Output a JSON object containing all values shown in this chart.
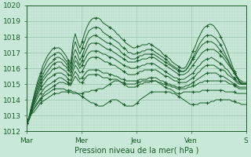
{
  "xlabel": "Pression niveau de la mer( hPa )",
  "xlim": [
    0,
    96
  ],
  "ylim": [
    1012,
    1020
  ],
  "yticks": [
    1012,
    1013,
    1014,
    1015,
    1016,
    1017,
    1018,
    1019,
    1020
  ],
  "xtick_positions": [
    0,
    24,
    48,
    72,
    96
  ],
  "xtick_labels": [
    "Mar",
    "Mer",
    "Jeu",
    "Ven",
    "S"
  ],
  "bg_color": "#c8e8d8",
  "grid_color_major": "#a0c8b0",
  "grid_color_minor": "#b8d8c8",
  "line_color": "#1a5c2a",
  "series": [
    [
      1012.6,
      1012.8,
      1013.1,
      1013.2,
      1013.4,
      1013.6,
      1013.8,
      1013.9,
      1014.0,
      1014.1,
      1014.2,
      1014.3,
      1014.4,
      1014.4,
      1014.4,
      1014.5,
      1014.5,
      1014.5,
      1014.5,
      1014.5,
      1014.4,
      1014.4,
      1014.4,
      1014.3,
      1014.2,
      1014.1,
      1014.0,
      1013.9,
      1013.8,
      1013.8,
      1013.7,
      1013.6,
      1013.6,
      1013.6,
      1013.7,
      1013.8,
      1013.9,
      1014.0,
      1014.0,
      1014.0,
      1013.9,
      1013.8,
      1013.7,
      1013.6,
      1013.6,
      1013.6,
      1013.6,
      1013.7,
      1013.8,
      1014.0,
      1014.1,
      1014.2,
      1014.3,
      1014.4,
      1014.5,
      1014.5,
      1014.5,
      1014.5,
      1014.5,
      1014.5,
      1014.5,
      1014.5,
      1014.5,
      1014.4,
      1014.4,
      1014.3,
      1014.2,
      1014.1,
      1014.0,
      1013.9,
      1013.8,
      1013.7,
      1013.7,
      1013.7,
      1013.7,
      1013.8,
      1013.8,
      1013.8,
      1013.8,
      1013.8,
      1013.9,
      1013.9,
      1014.0,
      1014.0,
      1014.0,
      1014.0,
      1014.0,
      1014.0,
      1014.0,
      1013.9,
      1013.9,
      1013.8,
      1013.8,
      1013.7,
      1013.7,
      1013.7
    ],
    [
      1012.6,
      1012.8,
      1013.2,
      1013.4,
      1013.6,
      1013.8,
      1014.0,
      1014.2,
      1014.3,
      1014.4,
      1014.5,
      1014.6,
      1014.7,
      1014.7,
      1014.7,
      1014.7,
      1014.7,
      1014.6,
      1014.6,
      1014.6,
      1014.5,
      1014.5,
      1014.4,
      1014.4,
      1014.4,
      1014.5,
      1014.5,
      1014.5,
      1014.6,
      1014.6,
      1014.6,
      1014.7,
      1014.7,
      1014.7,
      1014.8,
      1014.9,
      1015.0,
      1015.1,
      1015.2,
      1015.2,
      1015.2,
      1015.1,
      1015.0,
      1014.9,
      1014.8,
      1014.8,
      1014.8,
      1014.8,
      1014.9,
      1015.0,
      1015.0,
      1015.1,
      1015.1,
      1015.1,
      1015.2,
      1015.2,
      1015.2,
      1015.1,
      1015.0,
      1014.9,
      1014.8,
      1014.7,
      1014.7,
      1014.6,
      1014.5,
      1014.4,
      1014.4,
      1014.4,
      1014.5,
      1014.5,
      1014.5,
      1014.5,
      1014.5,
      1014.5,
      1014.5,
      1014.5,
      1014.6,
      1014.6,
      1014.6,
      1014.6,
      1014.6,
      1014.6,
      1014.6,
      1014.6,
      1014.6,
      1014.6,
      1014.5,
      1014.5,
      1014.5,
      1014.5,
      1014.5,
      1014.4,
      1014.4,
      1014.4,
      1014.4,
      1014.4
    ],
    [
      1012.5,
      1012.7,
      1013.1,
      1013.4,
      1013.7,
      1013.9,
      1014.1,
      1014.3,
      1014.5,
      1014.6,
      1014.7,
      1014.8,
      1014.9,
      1015.0,
      1015.1,
      1015.1,
      1015.1,
      1015.0,
      1015.0,
      1014.9,
      1015.2,
      1015.5,
      1015.3,
      1015.1,
      1015.1,
      1015.3,
      1015.5,
      1015.6,
      1015.6,
      1015.6,
      1015.6,
      1015.6,
      1015.5,
      1015.4,
      1015.4,
      1015.4,
      1015.3,
      1015.3,
      1015.3,
      1015.3,
      1015.2,
      1015.1,
      1015.1,
      1015.0,
      1015.0,
      1015.0,
      1015.0,
      1015.0,
      1015.1,
      1015.1,
      1015.2,
      1015.2,
      1015.2,
      1015.2,
      1015.2,
      1015.2,
      1015.2,
      1015.1,
      1015.1,
      1015.0,
      1015.0,
      1014.9,
      1014.9,
      1014.8,
      1014.8,
      1014.7,
      1014.7,
      1014.7,
      1014.7,
      1014.7,
      1014.8,
      1014.8,
      1014.9,
      1014.9,
      1015.0,
      1015.1,
      1015.1,
      1015.2,
      1015.2,
      1015.2,
      1015.2,
      1015.2,
      1015.2,
      1015.2,
      1015.2,
      1015.2,
      1015.2,
      1015.1,
      1015.0,
      1015.0,
      1014.9,
      1014.8,
      1014.7,
      1014.7,
      1014.7,
      1014.7
    ],
    [
      1012.5,
      1012.8,
      1013.2,
      1013.6,
      1013.9,
      1014.2,
      1014.4,
      1014.6,
      1014.8,
      1014.9,
      1015.0,
      1015.1,
      1015.2,
      1015.3,
      1015.4,
      1015.4,
      1015.3,
      1015.2,
      1015.1,
      1015.0,
      1015.5,
      1015.8,
      1015.6,
      1015.3,
      1015.4,
      1015.6,
      1015.8,
      1015.9,
      1015.9,
      1015.9,
      1015.9,
      1015.9,
      1015.8,
      1015.7,
      1015.7,
      1015.7,
      1015.6,
      1015.6,
      1015.5,
      1015.5,
      1015.4,
      1015.3,
      1015.3,
      1015.2,
      1015.2,
      1015.2,
      1015.2,
      1015.2,
      1015.2,
      1015.3,
      1015.3,
      1015.3,
      1015.3,
      1015.4,
      1015.4,
      1015.4,
      1015.4,
      1015.3,
      1015.2,
      1015.2,
      1015.1,
      1015.0,
      1015.0,
      1014.9,
      1014.9,
      1014.8,
      1014.8,
      1014.8,
      1014.8,
      1014.9,
      1014.9,
      1015.0,
      1015.1,
      1015.2,
      1015.3,
      1015.4,
      1015.5,
      1015.6,
      1015.7,
      1015.7,
      1015.7,
      1015.7,
      1015.7,
      1015.6,
      1015.5,
      1015.5,
      1015.4,
      1015.3,
      1015.2,
      1015.1,
      1015.0,
      1014.9,
      1014.8,
      1014.8,
      1014.8,
      1014.8
    ],
    [
      1012.5,
      1012.8,
      1013.3,
      1013.7,
      1014.1,
      1014.4,
      1014.7,
      1014.9,
      1015.1,
      1015.3,
      1015.4,
      1015.5,
      1015.6,
      1015.7,
      1015.7,
      1015.7,
      1015.6,
      1015.5,
      1015.3,
      1015.2,
      1015.8,
      1016.2,
      1016.0,
      1015.7,
      1015.8,
      1016.1,
      1016.4,
      1016.6,
      1016.7,
      1016.7,
      1016.7,
      1016.7,
      1016.6,
      1016.5,
      1016.4,
      1016.4,
      1016.3,
      1016.2,
      1016.2,
      1016.1,
      1016.0,
      1015.9,
      1015.8,
      1015.7,
      1015.6,
      1015.6,
      1015.6,
      1015.6,
      1015.7,
      1015.8,
      1015.8,
      1015.9,
      1015.9,
      1015.9,
      1015.9,
      1015.9,
      1015.9,
      1015.8,
      1015.7,
      1015.6,
      1015.5,
      1015.5,
      1015.4,
      1015.3,
      1015.2,
      1015.2,
      1015.1,
      1015.1,
      1015.1,
      1015.1,
      1015.2,
      1015.3,
      1015.4,
      1015.5,
      1015.7,
      1015.8,
      1016.0,
      1016.1,
      1016.2,
      1016.2,
      1016.2,
      1016.2,
      1016.1,
      1016.0,
      1015.9,
      1015.9,
      1015.8,
      1015.6,
      1015.5,
      1015.4,
      1015.3,
      1015.1,
      1015.0,
      1015.0,
      1015.0,
      1015.0
    ],
    [
      1012.5,
      1012.8,
      1013.3,
      1013.8,
      1014.2,
      1014.6,
      1014.9,
      1015.2,
      1015.4,
      1015.6,
      1015.7,
      1015.9,
      1016.0,
      1016.0,
      1016.1,
      1016.0,
      1015.9,
      1015.8,
      1015.6,
      1015.5,
      1016.1,
      1016.5,
      1016.3,
      1016.0,
      1016.2,
      1016.5,
      1016.8,
      1017.0,
      1017.1,
      1017.1,
      1017.1,
      1017.1,
      1017.0,
      1016.9,
      1016.9,
      1016.8,
      1016.7,
      1016.7,
      1016.6,
      1016.5,
      1016.4,
      1016.3,
      1016.2,
      1016.1,
      1016.1,
      1016.0,
      1016.0,
      1016.0,
      1016.1,
      1016.1,
      1016.2,
      1016.2,
      1016.3,
      1016.3,
      1016.3,
      1016.3,
      1016.2,
      1016.1,
      1016.0,
      1015.9,
      1015.8,
      1015.7,
      1015.6,
      1015.5,
      1015.4,
      1015.4,
      1015.3,
      1015.3,
      1015.3,
      1015.4,
      1015.5,
      1015.6,
      1015.7,
      1015.9,
      1016.1,
      1016.2,
      1016.4,
      1016.5,
      1016.6,
      1016.6,
      1016.7,
      1016.6,
      1016.5,
      1016.4,
      1016.3,
      1016.2,
      1016.0,
      1015.9,
      1015.7,
      1015.5,
      1015.4,
      1015.2,
      1015.1,
      1015.0,
      1015.0,
      1015.0
    ],
    [
      1012.5,
      1012.8,
      1013.4,
      1013.9,
      1014.3,
      1014.7,
      1015.1,
      1015.4,
      1015.6,
      1015.8,
      1016.0,
      1016.2,
      1016.3,
      1016.4,
      1016.4,
      1016.4,
      1016.2,
      1016.1,
      1015.9,
      1015.7,
      1016.4,
      1016.8,
      1016.5,
      1016.2,
      1016.5,
      1016.9,
      1017.2,
      1017.5,
      1017.6,
      1017.6,
      1017.6,
      1017.6,
      1017.5,
      1017.4,
      1017.3,
      1017.2,
      1017.2,
      1017.1,
      1017.0,
      1016.9,
      1016.8,
      1016.7,
      1016.6,
      1016.5,
      1016.4,
      1016.4,
      1016.4,
      1016.4,
      1016.5,
      1016.5,
      1016.6,
      1016.6,
      1016.6,
      1016.7,
      1016.7,
      1016.7,
      1016.6,
      1016.5,
      1016.4,
      1016.3,
      1016.2,
      1016.1,
      1016.0,
      1015.9,
      1015.8,
      1015.7,
      1015.6,
      1015.6,
      1015.6,
      1015.7,
      1015.8,
      1016.0,
      1016.2,
      1016.4,
      1016.6,
      1016.8,
      1017.0,
      1017.1,
      1017.2,
      1017.2,
      1017.2,
      1017.2,
      1017.1,
      1017.0,
      1016.8,
      1016.7,
      1016.5,
      1016.3,
      1016.1,
      1015.9,
      1015.7,
      1015.5,
      1015.3,
      1015.2,
      1015.1,
      1015.1
    ],
    [
      1012.5,
      1012.9,
      1013.5,
      1014.0,
      1014.5,
      1014.9,
      1015.3,
      1015.6,
      1015.9,
      1016.1,
      1016.3,
      1016.4,
      1016.6,
      1016.7,
      1016.7,
      1016.6,
      1016.5,
      1016.3,
      1016.1,
      1015.9,
      1016.8,
      1017.2,
      1016.9,
      1016.5,
      1016.8,
      1017.2,
      1017.6,
      1017.9,
      1018.0,
      1018.1,
      1018.1,
      1018.0,
      1017.9,
      1017.8,
      1017.7,
      1017.6,
      1017.6,
      1017.5,
      1017.4,
      1017.3,
      1017.2,
      1017.0,
      1016.9,
      1016.8,
      1016.7,
      1016.6,
      1016.6,
      1016.6,
      1016.7,
      1016.8,
      1016.8,
      1016.9,
      1016.9,
      1016.9,
      1016.9,
      1016.9,
      1016.8,
      1016.7,
      1016.6,
      1016.5,
      1016.4,
      1016.3,
      1016.2,
      1016.1,
      1016.0,
      1015.9,
      1015.8,
      1015.8,
      1015.8,
      1015.9,
      1016.1,
      1016.3,
      1016.6,
      1016.8,
      1017.1,
      1017.3,
      1017.5,
      1017.6,
      1017.7,
      1017.7,
      1017.7,
      1017.6,
      1017.5,
      1017.3,
      1017.1,
      1016.9,
      1016.7,
      1016.5,
      1016.2,
      1015.9,
      1015.7,
      1015.5,
      1015.2,
      1015.1,
      1015.0,
      1015.0
    ],
    [
      1012.5,
      1012.9,
      1013.5,
      1014.1,
      1014.6,
      1015.1,
      1015.5,
      1015.9,
      1016.2,
      1016.5,
      1016.7,
      1016.8,
      1016.9,
      1017.0,
      1017.0,
      1016.9,
      1016.7,
      1016.5,
      1016.3,
      1016.1,
      1017.2,
      1017.7,
      1017.3,
      1016.9,
      1017.3,
      1017.7,
      1018.1,
      1018.4,
      1018.5,
      1018.6,
      1018.6,
      1018.6,
      1018.5,
      1018.3,
      1018.2,
      1018.1,
      1018.0,
      1017.9,
      1017.8,
      1017.7,
      1017.6,
      1017.4,
      1017.3,
      1017.2,
      1017.0,
      1017.0,
      1016.9,
      1016.9,
      1017.0,
      1017.0,
      1017.1,
      1017.1,
      1017.2,
      1017.2,
      1017.2,
      1017.1,
      1017.0,
      1016.9,
      1016.8,
      1016.7,
      1016.6,
      1016.5,
      1016.3,
      1016.2,
      1016.1,
      1016.0,
      1015.9,
      1015.8,
      1015.8,
      1015.9,
      1016.1,
      1016.4,
      1016.7,
      1017.0,
      1017.3,
      1017.6,
      1017.8,
      1018.0,
      1018.1,
      1018.1,
      1018.1,
      1018.0,
      1017.9,
      1017.7,
      1017.5,
      1017.2,
      1016.9,
      1016.6,
      1016.3,
      1016.0,
      1015.7,
      1015.4,
      1015.2,
      1015.0,
      1015.0,
      1015.0
    ],
    [
      1012.5,
      1012.9,
      1013.6,
      1014.2,
      1014.8,
      1015.3,
      1015.7,
      1016.2,
      1016.5,
      1016.8,
      1017.0,
      1017.2,
      1017.3,
      1017.3,
      1017.3,
      1017.2,
      1017.0,
      1016.8,
      1016.5,
      1016.3,
      1017.6,
      1018.2,
      1017.7,
      1017.3,
      1017.7,
      1018.2,
      1018.6,
      1018.9,
      1019.1,
      1019.2,
      1019.2,
      1019.2,
      1019.1,
      1018.9,
      1018.8,
      1018.7,
      1018.6,
      1018.5,
      1018.4,
      1018.2,
      1018.1,
      1017.9,
      1017.8,
      1017.6,
      1017.5,
      1017.4,
      1017.3,
      1017.3,
      1017.4,
      1017.4,
      1017.5,
      1017.5,
      1017.5,
      1017.6,
      1017.5,
      1017.4,
      1017.3,
      1017.2,
      1017.1,
      1016.9,
      1016.8,
      1016.7,
      1016.6,
      1016.4,
      1016.3,
      1016.2,
      1016.1,
      1016.0,
      1016.0,
      1016.1,
      1016.4,
      1016.7,
      1017.1,
      1017.4,
      1017.8,
      1018.1,
      1018.4,
      1018.6,
      1018.7,
      1018.8,
      1018.8,
      1018.7,
      1018.5,
      1018.3,
      1018.0,
      1017.7,
      1017.4,
      1017.0,
      1016.6,
      1016.2,
      1015.8,
      1015.5,
      1015.2,
      1015.0,
      1015.0,
      1015.0
    ]
  ]
}
